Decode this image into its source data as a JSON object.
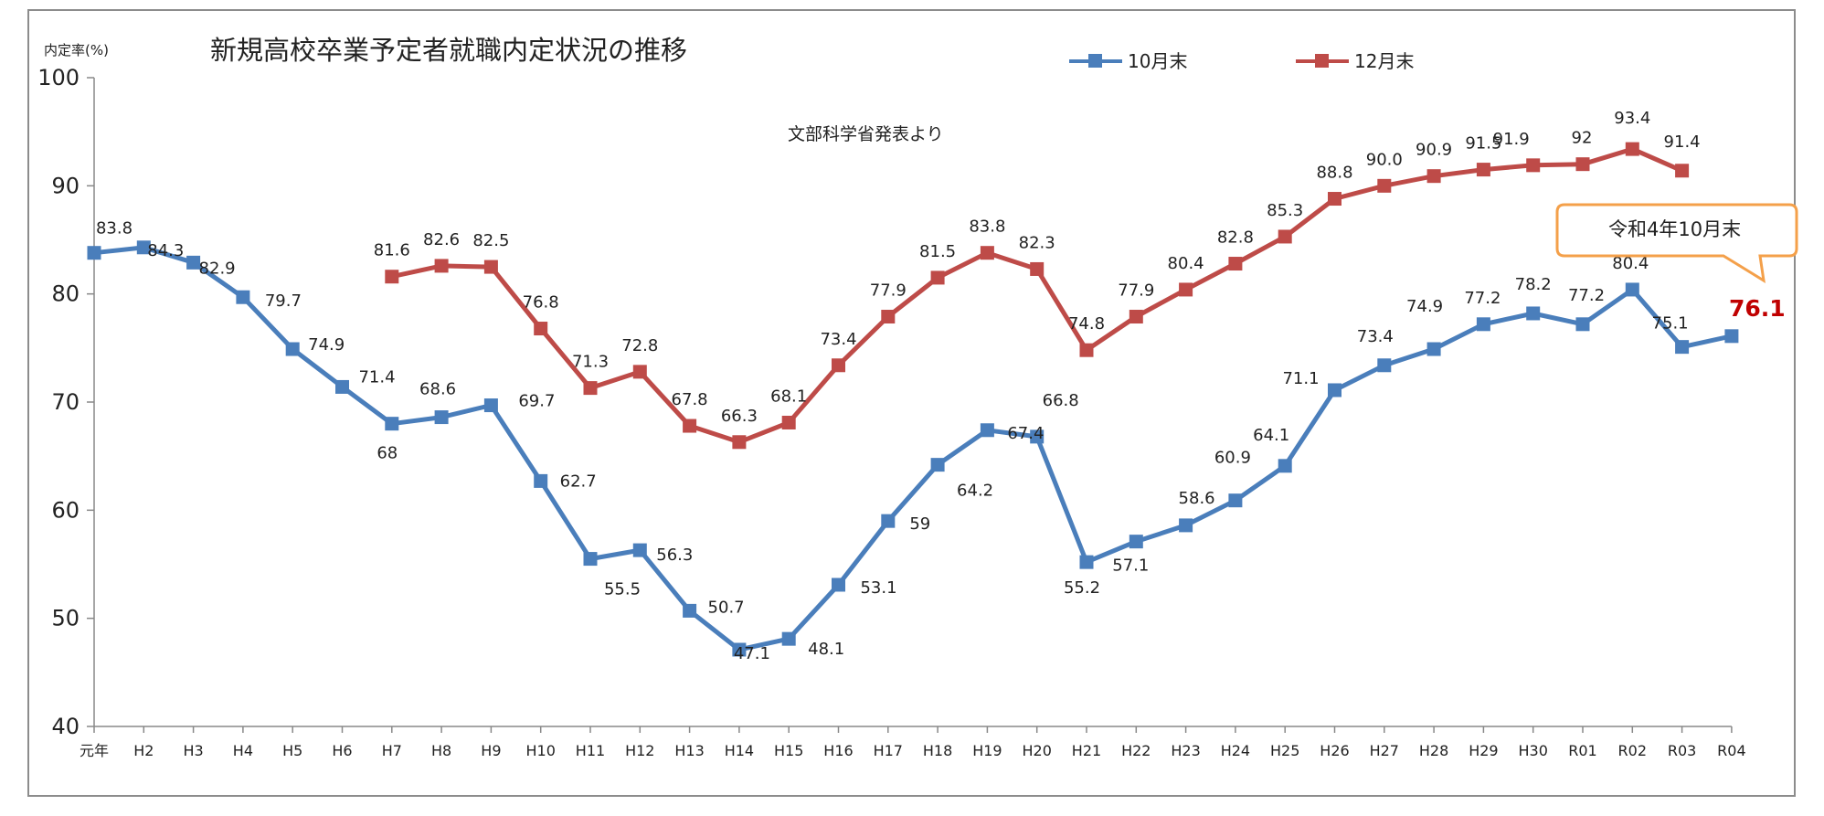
{
  "chart_data": {
    "type": "line",
    "title": "新規高校卒業予定者就職内定状況の推移",
    "ylabel": "内定率(%)",
    "source_note": "文部科学省発表より",
    "ylim": [
      40,
      100
    ],
    "yticks": [
      "40",
      "50",
      "60",
      "70",
      "80",
      "90",
      "100"
    ],
    "categories": [
      "元年",
      "H2",
      "H3",
      "H4",
      "H5",
      "H6",
      "H7",
      "H8",
      "H9",
      "H10",
      "H11",
      "H12",
      "H13",
      "H14",
      "H15",
      "H16",
      "H17",
      "H18",
      "H19",
      "H20",
      "H21",
      "H22",
      "H23",
      "H24",
      "H25",
      "H26",
      "H27",
      "H28",
      "H29",
      "H30",
      "R01",
      "R02",
      "R03",
      "R04"
    ],
    "legend_position": "top",
    "series": [
      {
        "name": "10月末",
        "color": "#4a7ebb",
        "values": [
          83.8,
          84.3,
          82.9,
          79.7,
          74.9,
          71.4,
          68,
          68.6,
          69.7,
          62.7,
          55.5,
          56.3,
          50.7,
          47.1,
          48.1,
          53.1,
          59,
          64.2,
          67.4,
          66.8,
          55.2,
          57.1,
          58.6,
          60.9,
          64.1,
          71.1,
          73.4,
          74.9,
          77.2,
          78.2,
          77.2,
          80.4,
          75.1,
          76.1
        ],
        "labels": [
          "83.8",
          "84.3",
          "82.9",
          "79.7",
          "74.9",
          "71.4",
          "68",
          "68.6",
          "69.7",
          "62.7",
          "55.5",
          "56.3",
          "50.7",
          "47.1",
          "48.1",
          "53.1",
          "59",
          "64.2",
          "67.4",
          "66.8",
          "55.2",
          "57.1",
          "58.6",
          "60.9",
          "64.1",
          "71.1",
          "73.4",
          "74.9",
          "77.2",
          "78.2",
          "77.2",
          "80.4",
          "75.1",
          "76.1"
        ]
      },
      {
        "name": "12月末",
        "color": "#be4b48",
        "values": [
          null,
          null,
          null,
          null,
          null,
          null,
          81.6,
          82.6,
          82.5,
          76.8,
          71.3,
          72.8,
          67.8,
          66.3,
          68.1,
          73.4,
          77.9,
          81.5,
          83.8,
          82.3,
          74.8,
          77.9,
          80.4,
          82.8,
          85.3,
          88.8,
          90.0,
          90.9,
          91.5,
          91.9,
          92,
          93.4,
          91.4,
          null
        ],
        "labels": [
          null,
          null,
          null,
          null,
          null,
          null,
          "81.6",
          "82.6",
          "82.5",
          "76.8",
          "71.3",
          "72.8",
          "67.8",
          "66.3",
          "68.1",
          "73.4",
          "77.9",
          "81.5",
          "83.8",
          "82.3",
          "74.8",
          "77.9",
          "80.4",
          "82.8",
          "85.3",
          "88.8",
          "90.0",
          "90.9",
          "91.5",
          "91.9",
          "92",
          "93.4",
          "91.4",
          null
        ]
      }
    ],
    "callout": {
      "text": "令和4年10月末",
      "highlight_value": "76.1",
      "border_color": "#f4a04a",
      "highlight_color": "#c00000"
    }
  }
}
